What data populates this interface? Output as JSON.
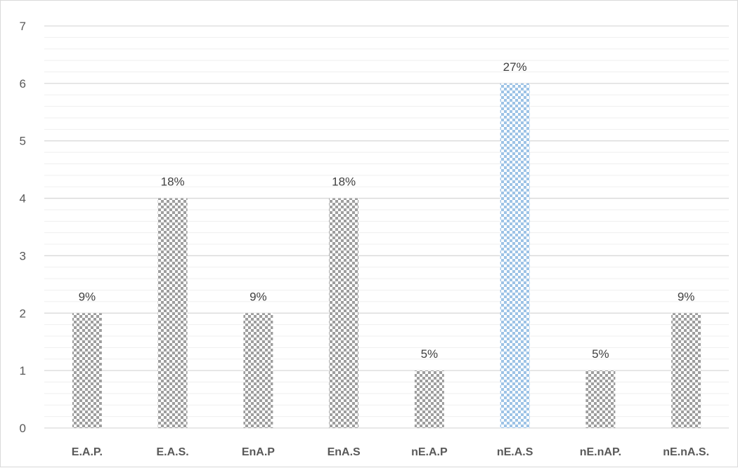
{
  "chart_data": {
    "type": "bar",
    "categories": [
      "E.A.P.",
      "E.A.S.",
      "EnA.P",
      "EnA.S",
      "nE.A.P",
      "nE.A.S",
      "nE.nAP.",
      "nE.nA.S."
    ],
    "values": [
      2,
      4,
      2,
      4,
      1,
      6,
      1,
      2
    ],
    "data_labels": [
      "9%",
      "18%",
      "9%",
      "18%",
      "5%",
      "27%",
      "5%",
      "9%"
    ],
    "y_ticks": [
      "0",
      "1",
      "2",
      "3",
      "4",
      "5",
      "6",
      "7"
    ],
    "ylim": [
      0,
      7
    ],
    "grid": true,
    "minor_grid": true,
    "legend": "none",
    "bar_pattern": "checkerboard",
    "colors": {
      "default_bar": "#9e9e9e",
      "highlight_bar": "#9dc3e6",
      "highlight_index": 5,
      "grid_major": "#d9d9d9",
      "grid_minor": "#efefef"
    }
  }
}
